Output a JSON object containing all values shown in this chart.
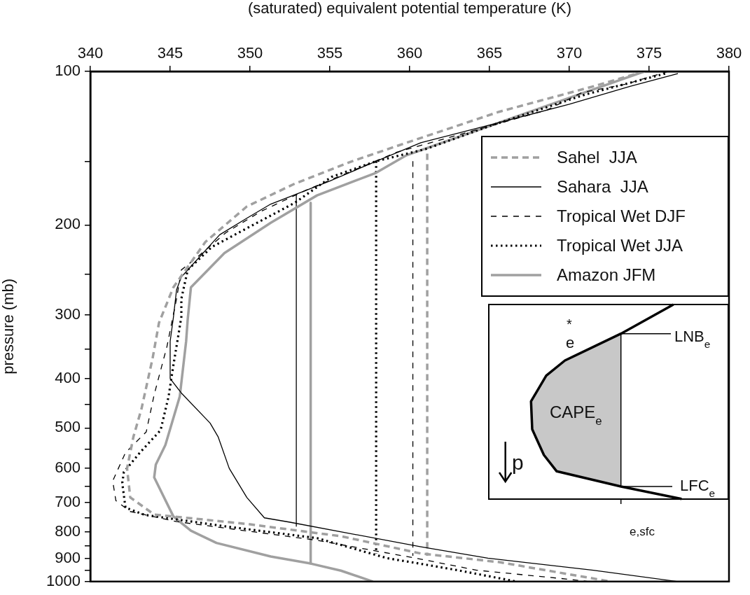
{
  "chart_data": {
    "type": "line",
    "xlabel": "(saturated) equivalent potential temperature (K)",
    "ylabel": "pressure (mb)",
    "xlim": [
      340,
      380
    ],
    "xticks": [
      340,
      345,
      350,
      355,
      360,
      365,
      370,
      375,
      380
    ],
    "ylim": [
      1000,
      100
    ],
    "log": "y",
    "yticks": [
      100,
      {
        "value": 150,
        "label": null
      },
      200,
      {
        "value": 250,
        "label": null
      },
      300,
      {
        "value": 350,
        "label": null
      },
      400,
      {
        "value": 450,
        "label": null
      },
      500,
      {
        "value": 550,
        "label": null
      },
      600,
      {
        "value": 650,
        "label": null
      },
      700,
      {
        "value": 750,
        "label": null
      },
      800,
      {
        "value": 850,
        "label": null
      },
      900,
      {
        "value": 950,
        "label": null
      },
      1000
    ],
    "legend": "top right",
    "series": [
      {
        "name": "Sahel  JJA",
        "color": "#a0a0a0",
        "line_style": "dashed",
        "x": [
          374.7,
          371.5,
          365.6,
          359.8,
          356.4,
          352.8,
          349.8,
          347.2,
          345.2,
          344.3,
          343.9,
          343.2,
          342.7,
          342.3,
          342.5,
          344.0,
          349.8,
          355.7,
          360.7,
          365.6,
          372.6
        ],
        "values": [
          100,
          107,
          120,
          138,
          150,
          166,
          184,
          216,
          265,
          311,
          365,
          459,
          520,
          600,
          684,
          739,
          771,
          815,
          881,
          916,
          1000
        ]
      },
      {
        "name": "Sahara  JJA",
        "color": "#000000",
        "line_style": "solid",
        "x": [
          376.8,
          373.8,
          370.0,
          365.6,
          360.7,
          357.9,
          355.0,
          352.9,
          351.3,
          349.8,
          348.1,
          345.7,
          345.4,
          345.2,
          345.0,
          345.0,
          345.7,
          347.5,
          348.0,
          348.7,
          349.8,
          350.9,
          352.5,
          360.7,
          364.9,
          371.5,
          376.8
        ],
        "values": [
          101,
          107,
          116,
          126,
          138,
          150,
          164,
          174,
          182,
          194,
          209,
          253,
          268,
          304,
          338,
          400,
          427,
          489,
          520,
          600,
          684,
          750,
          765,
          855,
          900,
          950,
          1000
        ]
      },
      {
        "name": "Tropical Wet DJF",
        "color": "#000000",
        "line_style": "dashed",
        "x": [
          376.2,
          373.5,
          370.8,
          368.6,
          359.2,
          353.5,
          350.7,
          348.5,
          346.5,
          345.7,
          345.4,
          344.8,
          344.0,
          343.5,
          342.2,
          341.4,
          341.6,
          342.5,
          345.4,
          354.2,
          360.4,
          364.2,
          370.0,
          371.2
        ],
        "values": [
          100,
          106,
          110,
          119,
          144,
          171,
          188,
          207,
          234,
          245,
          279,
          346,
          430,
          509,
          559,
          635,
          694,
          729,
          763,
          830,
          900,
          950,
          990,
          1000
        ]
      },
      {
        "name": "Tropical Wet JJA",
        "color": "#000000",
        "line_style": "dotted",
        "x": [
          376.0,
          371.0,
          365.0,
          361.0,
          357.9,
          355.1,
          352.8,
          349.8,
          347.6,
          346.1,
          345.7,
          345.7,
          345.2,
          344.9,
          344.4,
          343.1,
          342.1,
          342.0,
          342.2,
          343.4,
          348.4,
          354.2,
          358.6,
          360.7,
          363.0,
          366.7
        ],
        "values": [
          101,
          111,
          128,
          142,
          150,
          161,
          181,
          203,
          221,
          245,
          279,
          303,
          377,
          434,
          505,
          559,
          610,
          641,
          716,
          740,
          779,
          822,
          900,
          923,
          950,
          1000
        ]
      },
      {
        "name": "Amazon JFM",
        "color": "#a0a0a0",
        "line_style": "solid",
        "x": [
          374.7,
          359.8,
          357.9,
          354.2,
          351.3,
          348.4,
          346.3,
          346.1,
          346.0,
          345.6,
          344.7,
          344.1,
          344.0,
          345.2,
          346.3,
          347.9,
          351.3,
          353.8,
          355.7,
          357.7
        ],
        "values": [
          100,
          146,
          158,
          175,
          198,
          227,
          265,
          306,
          338,
          434,
          540,
          590,
          625,
          745,
          795,
          840,
          893,
          922,
          952,
          1000
        ]
      },
      {
        "color": "#a0a0a0",
        "line_style": "dashed",
        "x": [
          361.1,
          361.1
        ],
        "values": [
          145,
          890
        ]
      },
      {
        "color": "#000000",
        "line_style": "solid",
        "x": [
          352.9,
          352.9
        ],
        "values": [
          174,
          779
        ]
      },
      {
        "color": "#000000",
        "line_style": "dashed",
        "x": [
          360.2,
          360.2
        ],
        "values": [
          150,
          890
        ]
      },
      {
        "color": "#000000",
        "line_style": "dotted",
        "x": [
          357.9,
          357.9
        ],
        "values": [
          150,
          881
        ]
      },
      {
        "color": "#a0a0a0",
        "line_style": "solid",
        "x": [
          353.8,
          353.8
        ],
        "values": [
          181,
          922
        ]
      }
    ],
    "annotations": [
      "*",
      "e",
      "LNB$_{e}$",
      "CAPE$_{e}$",
      "LFC$_{e}$",
      "p",
      "e,sfc"
    ]
  }
}
